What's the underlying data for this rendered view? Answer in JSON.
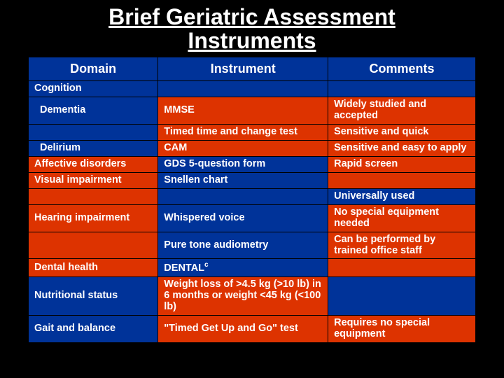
{
  "title_line1": "Brief Geriatric Assessment",
  "title_line2": "Instruments",
  "headers": {
    "domain": "Domain",
    "instrument": "Instrument",
    "comments": "Comments"
  },
  "rows": [
    {
      "domain": "Cognition",
      "instrument": "",
      "comments": "",
      "c0": "blue",
      "c1": "blue",
      "c2": "blue",
      "indent": false
    },
    {
      "domain": "Dementia",
      "instrument": "MMSE",
      "comments": "Widely studied and accepted",
      "c0": "blue",
      "c1": "orange",
      "c2": "orange",
      "indent": true
    },
    {
      "domain": "",
      "instrument": "Timed time and change test",
      "comments": "Sensitive and quick",
      "c0": "blue",
      "c1": "orange",
      "c2": "orange",
      "indent": false
    },
    {
      "domain": "Delirium",
      "instrument": "CAM",
      "comments": "Sensitive and easy to apply",
      "c0": "blue",
      "c1": "orange",
      "c2": "orange",
      "indent": true
    },
    {
      "domain": "Affective disorders",
      "instrument": "GDS 5-question form",
      "comments": "Rapid screen",
      "c0": "orange",
      "c1": "blue",
      "c2": "orange",
      "indent": false
    },
    {
      "domain": "Visual impairment",
      "instrument": "Snellen chart",
      "comments": "",
      "c0": "orange",
      "c1": "blue",
      "c2": "orange",
      "indent": false
    },
    {
      "domain": "",
      "instrument": "",
      "comments": "Universally used",
      "c0": "orange",
      "c1": "blue",
      "c2": "blue",
      "indent": false
    },
    {
      "domain": "Hearing impairment",
      "instrument": "Whispered voice",
      "comments": "No special equipment needed",
      "c0": "orange",
      "c1": "blue",
      "c2": "orange",
      "indent": false
    },
    {
      "domain": "",
      "instrument": "Pure tone audiometry",
      "comments": "Can be performed by trained office staff",
      "c0": "orange",
      "c1": "blue",
      "c2": "orange",
      "indent": false
    },
    {
      "domain": "Dental health",
      "instrument": "DENTAL",
      "instrument_sup": "c",
      "comments": "",
      "c0": "orange",
      "c1": "blue",
      "c2": "orange",
      "indent": false
    },
    {
      "domain": "Nutritional status",
      "instrument": "Weight loss of >4.5 kg (>10 lb) in 6 months or weight <45 kg (<100 lb)",
      "comments": "",
      "c0": "blue",
      "c1": "orange",
      "c2": "blue",
      "indent": false
    },
    {
      "domain": "Gait and balance",
      "instrument": "\"Timed Get Up and Go\" test",
      "comments": "Requires no special equipment",
      "c0": "blue",
      "c1": "orange",
      "c2": "orange",
      "indent": false
    }
  ],
  "colors": {
    "blue": "#003399",
    "orange": "#dd3300",
    "background": "#000000",
    "text": "#ffffff"
  }
}
